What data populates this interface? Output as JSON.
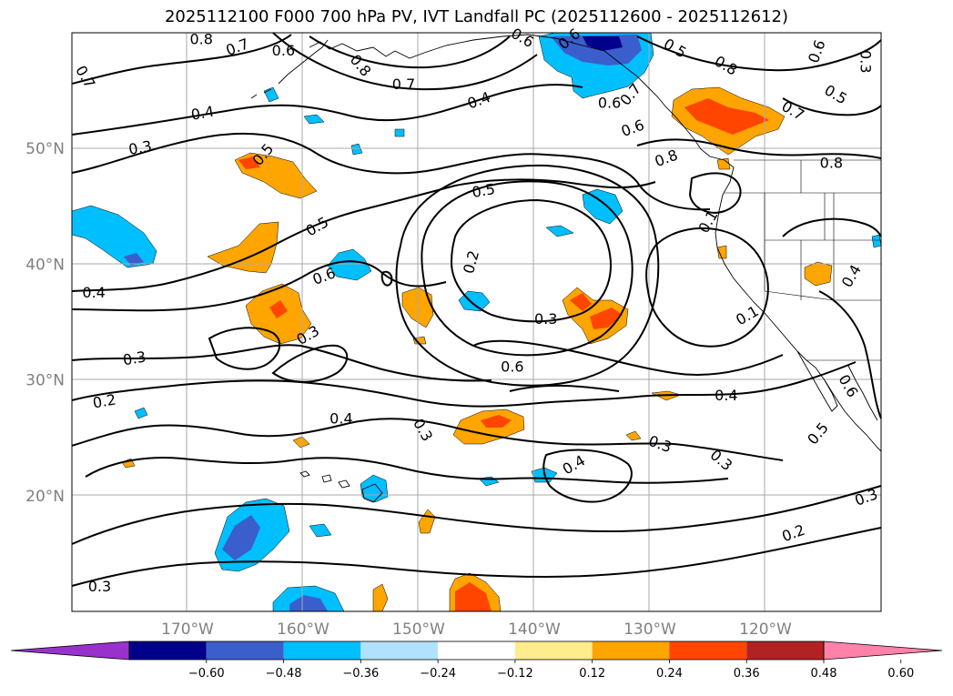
{
  "title": "2025112100 F000 700 hPa PV, IVT Landfall PC (2025112600 - 2025112612)",
  "lat_labels": [
    {
      "value": 50,
      "text": "50°N"
    },
    {
      "value": 40,
      "text": "40°N"
    },
    {
      "value": 30,
      "text": "30°N"
    },
    {
      "value": 20,
      "text": "20°N"
    }
  ],
  "lon_labels": [
    {
      "value": -170,
      "text": "170°W"
    },
    {
      "value": -160,
      "text": "160°W"
    },
    {
      "value": -150,
      "text": "150°W"
    },
    {
      "value": -140,
      "text": "140°W"
    },
    {
      "value": -130,
      "text": "130°W"
    },
    {
      "value": -120,
      "text": "120°W"
    }
  ],
  "colorbar": {
    "colors": [
      "#9932cc",
      "#00008b",
      "#3a5fcd",
      "#00bfff",
      "#b0e2ff",
      "#ffffff",
      "#ffec8b",
      "#ffa500",
      "#ff4500",
      "#b22222",
      "#ff82ab"
    ],
    "ticks": [
      "−0.60",
      "−0.48",
      "−0.36",
      "−0.24",
      "−0.12",
      "0.12",
      "0.24",
      "0.36",
      "0.48",
      "0.60"
    ]
  },
  "contour_labels": [
    {
      "text": "0.8",
      "lon": -168.8,
      "lat": 59.5,
      "rot": 0
    },
    {
      "text": "0.7",
      "lon": -165.7,
      "lat": 58.8,
      "rot": -20
    },
    {
      "text": "0.6",
      "lon": -161.7,
      "lat": 58.5,
      "rot": 0
    },
    {
      "text": "0.7",
      "lon": -178.8,
      "lat": 56.2,
      "rot": 60
    },
    {
      "text": "0.8",
      "lon": -155.0,
      "lat": 57.2,
      "rot": 50
    },
    {
      "text": "0.7",
      "lon": -151.3,
      "lat": 55.6,
      "rot": 0
    },
    {
      "text": "0.4",
      "lon": -168.7,
      "lat": 53.1,
      "rot": -10
    },
    {
      "text": "0.4",
      "lon": -144.8,
      "lat": 54.2,
      "rot": -20
    },
    {
      "text": "0.6",
      "lon": -141.0,
      "lat": 59.6,
      "rot": 30
    },
    {
      "text": "0.6",
      "lon": -137.0,
      "lat": 59.5,
      "rot": -40
    },
    {
      "text": "0.5",
      "lon": -127.8,
      "lat": 58.7,
      "rot": 30
    },
    {
      "text": "0.8",
      "lon": -123.4,
      "lat": 57.2,
      "rot": 30
    },
    {
      "text": "0.6",
      "lon": -115.6,
      "lat": 58.4,
      "rot": -70
    },
    {
      "text": "0.3",
      "lon": -111.3,
      "lat": 57.5,
      "rot": 90
    },
    {
      "text": "0.5",
      "lon": -113.9,
      "lat": 54.7,
      "rot": 30
    },
    {
      "text": "0.7",
      "lon": -117.6,
      "lat": 53.3,
      "rot": 30
    },
    {
      "text": "0.6",
      "lon": -133.5,
      "lat": 54.0,
      "rot": 0
    },
    {
      "text": "0.7",
      "lon": -131.7,
      "lat": 54.7,
      "rot": -50
    },
    {
      "text": "0.6",
      "lon": -131.5,
      "lat": 51.8,
      "rot": -20
    },
    {
      "text": "0.8",
      "lon": -128.6,
      "lat": 49.2,
      "rot": -20
    },
    {
      "text": "0.8",
      "lon": -114.3,
      "lat": 48.8,
      "rot": 0
    },
    {
      "text": "0.3",
      "lon": -174.1,
      "lat": 50.1,
      "rot": -10
    },
    {
      "text": "0.5",
      "lon": -163.5,
      "lat": 49.5,
      "rot": -50
    },
    {
      "text": "0.5",
      "lon": -144.4,
      "lat": 46.4,
      "rot": -10
    },
    {
      "text": "0.5",
      "lon": -158.8,
      "lat": 43.3,
      "rot": -30
    },
    {
      "text": "0.6",
      "lon": -158.2,
      "lat": 39.0,
      "rot": -20
    },
    {
      "text": "0.2",
      "lon": -145.5,
      "lat": 40.2,
      "rot": -75
    },
    {
      "text": "0.3",
      "lon": -139.0,
      "lat": 35.3,
      "rot": 0
    },
    {
      "text": "0.6",
      "lon": -141.9,
      "lat": 31.2,
      "rot": 0
    },
    {
      "text": "0.3",
      "lon": -159.6,
      "lat": 33.9,
      "rot": -30
    },
    {
      "text": "0.3",
      "lon": -174.6,
      "lat": 31.9,
      "rot": -10
    },
    {
      "text": "0.4",
      "lon": -178.1,
      "lat": 37.6,
      "rot": 0
    },
    {
      "text": "0.2",
      "lon": -177.2,
      "lat": 28.2,
      "rot": -10
    },
    {
      "text": "0.4",
      "lon": -156.7,
      "lat": 26.7,
      "rot": 0
    },
    {
      "text": "0.3",
      "lon": -149.6,
      "lat": 25.7,
      "rot": 60
    },
    {
      "text": "0.4",
      "lon": -123.4,
      "lat": 28.7,
      "rot": 0
    },
    {
      "text": "0.3",
      "lon": -129.1,
      "lat": 24.5,
      "rot": 20
    },
    {
      "text": "0.3",
      "lon": -123.8,
      "lat": 23.1,
      "rot": 40
    },
    {
      "text": "0.4",
      "lon": -136.6,
      "lat": 22.7,
      "rot": -30
    },
    {
      "text": "0.5",
      "lon": -115.5,
      "lat": 25.4,
      "rot": -50
    },
    {
      "text": "0.6",
      "lon": -112.8,
      "lat": 29.5,
      "rot": 60
    },
    {
      "text": "0.3",
      "lon": -111.3,
      "lat": 19.9,
      "rot": -20
    },
    {
      "text": "0.2",
      "lon": -117.6,
      "lat": 16.8,
      "rot": -20
    },
    {
      "text": "0.3",
      "lon": -177.6,
      "lat": 12.2,
      "rot": 0
    },
    {
      "text": "0.1",
      "lon": -121.6,
      "lat": 35.6,
      "rot": -30
    },
    {
      "text": "0.4",
      "lon": -112.6,
      "lat": 39.0,
      "rot": -60
    },
    {
      "text": "0.1",
      "lon": -125.0,
      "lat": 43.7,
      "rot": -60
    }
  ]
}
